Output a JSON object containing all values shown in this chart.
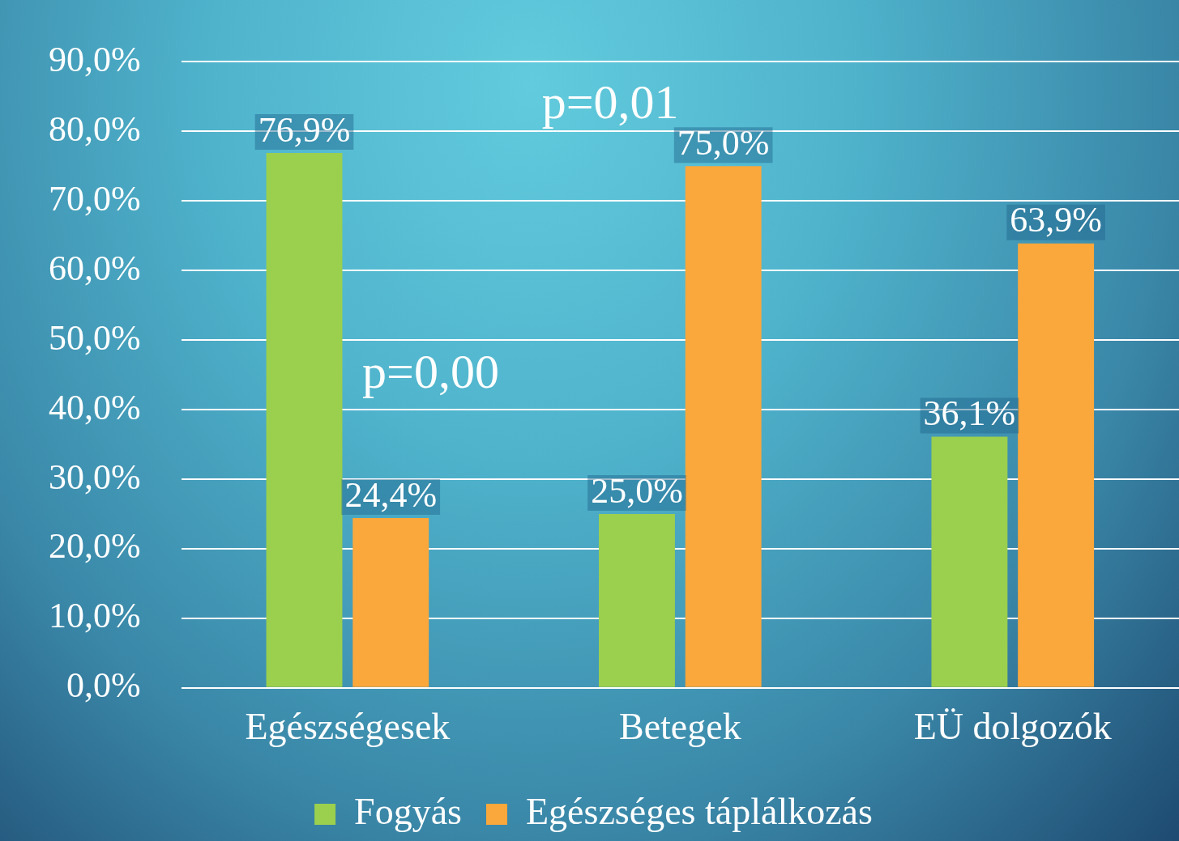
{
  "chart_data": {
    "type": "bar",
    "categories": [
      "Egészségesek",
      "Betegek",
      "EÜ dolgozók"
    ],
    "series": [
      {
        "name": "Fogyás",
        "color": "#9bcf4e",
        "values": [
          76.9,
          25.0,
          36.1
        ],
        "value_labels": [
          "76,9%",
          "25,0%",
          "36,1%"
        ]
      },
      {
        "name": "Egészséges táplálkozás",
        "color": "#faa73c",
        "values": [
          24.4,
          75.0,
          63.9
        ],
        "value_labels": [
          "24,4%",
          "75,0%",
          "63,9%"
        ]
      }
    ],
    "ylim": [
      0,
      90
    ],
    "yticks": [
      {
        "value": 0,
        "label": "0,0%"
      },
      {
        "value": 10,
        "label": "10,0%"
      },
      {
        "value": 20,
        "label": "20,0%"
      },
      {
        "value": 30,
        "label": "30,0%"
      },
      {
        "value": 40,
        "label": "40,0%"
      },
      {
        "value": 50,
        "label": "50,0%"
      },
      {
        "value": 60,
        "label": "60,0%"
      },
      {
        "value": 70,
        "label": "70,0%"
      },
      {
        "value": 80,
        "label": "80,0%"
      },
      {
        "value": 90,
        "label": "90,0%"
      }
    ],
    "grid": "y",
    "legend": "bottom",
    "annotations": [
      "p=0,00",
      "p=0,01"
    ]
  }
}
